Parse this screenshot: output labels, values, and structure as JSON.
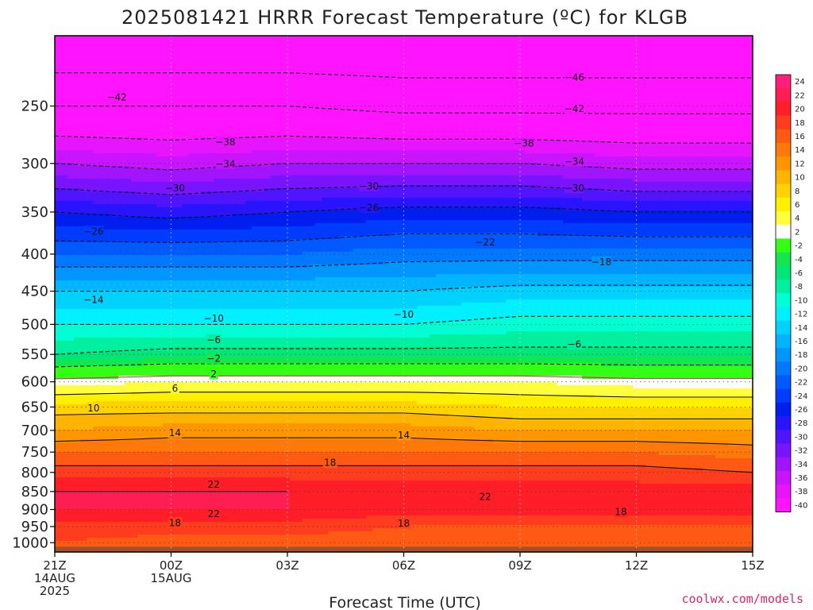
{
  "chart_data": {
    "type": "heatmap",
    "title": "2025081421 HRRR Forecast Temperature (ºC) for KLGB",
    "xlabel": "Forecast Time (UTC)",
    "ylabel": "",
    "credit": "coolwx.com/models",
    "x_ticks": [
      {
        "hour": 0,
        "lines": [
          "21Z",
          "14AUG",
          "2025"
        ]
      },
      {
        "hour": 3,
        "lines": [
          "00Z",
          "15AUG"
        ]
      },
      {
        "hour": 6,
        "lines": [
          "03Z"
        ]
      },
      {
        "hour": 9,
        "lines": [
          "06Z"
        ]
      },
      {
        "hour": 12,
        "lines": [
          "09Z"
        ]
      },
      {
        "hour": 15,
        "lines": [
          "12Z"
        ]
      },
      {
        "hour": 18,
        "lines": [
          "15Z"
        ]
      }
    ],
    "xlim": [
      0,
      18
    ],
    "y_ticks": [
      250,
      300,
      350,
      400,
      450,
      500,
      550,
      600,
      650,
      700,
      750,
      800,
      850,
      900,
      950,
      1000
    ],
    "ylim": [
      200,
      1030
    ],
    "y_scale": "log-pressure",
    "surface_pressure": 1013,
    "colorbar": {
      "labels": [
        "24",
        "22",
        "20",
        "18",
        "16",
        "14",
        "12",
        "10",
        "8",
        "6",
        "4",
        "2",
        "-2",
        "-4",
        "-6",
        "-8",
        "-10",
        "-12",
        "-14",
        "-16",
        "-18",
        "-20",
        "-22",
        "-24",
        "-26",
        "-28",
        "-30",
        "-32",
        "-34",
        "-36",
        "-38",
        "-40"
      ],
      "levels": [
        26,
        24,
        22,
        20,
        18,
        16,
        14,
        12,
        10,
        8,
        6,
        4,
        2,
        -2,
        -4,
        -6,
        -8,
        -10,
        -12,
        -14,
        -16,
        -18,
        -20,
        -22,
        -24,
        -26,
        -28,
        -30,
        -32,
        -34,
        -36,
        -38,
        -40,
        -44
      ],
      "colors": [
        "#ff1e78",
        "#ff1e52",
        "#ff1e28",
        "#ff3c1e",
        "#ff5a14",
        "#ff780a",
        "#ff9600",
        "#ffb400",
        "#ffd200",
        "#fff000",
        "#ffff3c",
        "#ffffff",
        "#32ff14",
        "#14e650",
        "#00e678",
        "#00f0a0",
        "#00ffd2",
        "#00f0ff",
        "#00d2ff",
        "#00b4ff",
        "#0096ff",
        "#0078ff",
        "#005aff",
        "#003cff",
        "#001ef0",
        "#2814ff",
        "#5014ff",
        "#7814ff",
        "#a014ff",
        "#c814ff",
        "#e614ff",
        "#ff14ff"
      ],
      "pos": [
        "#ff1e78",
        "#ff1e52",
        "#ff1e28",
        "#ff3c1e",
        "#ff5a14",
        "#ff780a",
        "#ff9600",
        "#ffb400",
        "#ffd200",
        "#fff000",
        "#ffff3c",
        "#ffffff"
      ]
    },
    "profiles": [
      {
        "hour": 0,
        "p": [
          200,
          250,
          300,
          350,
          400,
          450,
          500,
          550,
          600,
          650,
          700,
          750,
          800,
          850,
          900,
          950,
          1000
        ],
        "t": [
          -50,
          -42,
          -34,
          -26,
          -20,
          -14,
          -10,
          -6,
          3,
          9,
          12,
          16,
          19,
          22,
          22,
          19,
          18
        ]
      },
      {
        "hour": 3,
        "p": [
          200,
          250,
          300,
          350,
          400,
          450,
          500,
          550,
          600,
          650,
          700,
          750,
          800,
          850,
          900,
          950,
          1000
        ],
        "t": [
          -50,
          -42,
          -35,
          -27,
          -20,
          -14,
          -10,
          -5,
          4,
          9,
          13,
          16,
          19,
          22,
          22,
          19,
          17
        ]
      },
      {
        "hour": 6,
        "p": [
          200,
          250,
          300,
          350,
          400,
          450,
          500,
          550,
          600,
          650,
          700,
          750,
          800,
          850,
          900,
          950,
          1000
        ],
        "t": [
          -50,
          -42,
          -34,
          -26,
          -20,
          -14,
          -10,
          -5,
          4,
          9,
          13,
          16,
          19,
          22,
          22,
          19,
          17
        ]
      },
      {
        "hour": 9,
        "p": [
          200,
          250,
          300,
          350,
          400,
          450,
          500,
          550,
          600,
          650,
          700,
          750,
          800,
          850,
          900,
          950,
          1000
        ],
        "t": [
          -50,
          -43,
          -34,
          -25,
          -19,
          -14,
          -10,
          -5,
          4,
          9,
          13,
          16,
          19,
          21,
          21,
          18,
          17
        ]
      },
      {
        "hour": 12,
        "p": [
          200,
          250,
          300,
          350,
          400,
          450,
          500,
          550,
          600,
          650,
          700,
          750,
          800,
          850,
          900,
          950,
          1000
        ],
        "t": [
          -50,
          -43,
          -34,
          -25,
          -19,
          -13,
          -9,
          -5,
          4,
          8,
          12,
          16,
          19,
          21,
          21,
          18,
          16
        ]
      },
      {
        "hour": 15,
        "p": [
          200,
          250,
          300,
          350,
          400,
          450,
          500,
          550,
          600,
          650,
          700,
          750,
          800,
          850,
          900,
          950,
          1000
        ],
        "t": [
          -50,
          -43,
          -35,
          -26,
          -19,
          -13,
          -9,
          -5,
          3,
          8,
          12,
          16,
          19,
          21,
          21,
          18,
          16
        ]
      },
      {
        "hour": 18,
        "p": [
          200,
          250,
          300,
          350,
          400,
          450,
          500,
          550,
          600,
          650,
          700,
          750,
          800,
          850,
          900,
          950,
          1000
        ],
        "t": [
          -50,
          -43,
          -35,
          -26,
          -19,
          -13,
          -9,
          -5,
          3,
          8,
          12,
          15,
          18,
          21,
          21,
          18,
          16
        ]
      }
    ],
    "contour_labels": [
      {
        "hour": 1.6,
        "p": 243,
        "text": "−42"
      },
      {
        "hour": 13.4,
        "p": 228,
        "text": "−46"
      },
      {
        "hour": 13.4,
        "p": 252,
        "text": "−42"
      },
      {
        "hour": 4.4,
        "p": 280,
        "text": "−38"
      },
      {
        "hour": 12.1,
        "p": 281,
        "text": "−38"
      },
      {
        "hour": 4.4,
        "p": 300,
        "text": "−34"
      },
      {
        "hour": 13.4,
        "p": 298,
        "text": "−34"
      },
      {
        "hour": 3.1,
        "p": 324,
        "text": "−30"
      },
      {
        "hour": 8.1,
        "p": 322,
        "text": "−30"
      },
      {
        "hour": 13.4,
        "p": 324,
        "text": "−30"
      },
      {
        "hour": 1.0,
        "p": 372,
        "text": "−26"
      },
      {
        "hour": 8.1,
        "p": 345,
        "text": "−26"
      },
      {
        "hour": 11.1,
        "p": 385,
        "text": "−22"
      },
      {
        "hour": 14.1,
        "p": 410,
        "text": "−18"
      },
      {
        "hour": 1.0,
        "p": 462,
        "text": "−14"
      },
      {
        "hour": 4.1,
        "p": 490,
        "text": "−10"
      },
      {
        "hour": 9.0,
        "p": 484,
        "text": "−10"
      },
      {
        "hour": 4.1,
        "p": 525,
        "text": "−6"
      },
      {
        "hour": 13.4,
        "p": 532,
        "text": "−6"
      },
      {
        "hour": 4.1,
        "p": 557,
        "text": "−2"
      },
      {
        "hour": 4.1,
        "p": 585,
        "text": "2"
      },
      {
        "hour": 3.1,
        "p": 612,
        "text": "6"
      },
      {
        "hour": 1.0,
        "p": 652,
        "text": "10"
      },
      {
        "hour": 3.1,
        "p": 705,
        "text": "14"
      },
      {
        "hour": 9.0,
        "p": 710,
        "text": "14"
      },
      {
        "hour": 7.1,
        "p": 775,
        "text": "18"
      },
      {
        "hour": 4.1,
        "p": 830,
        "text": "22"
      },
      {
        "hour": 11.1,
        "p": 863,
        "text": "22"
      },
      {
        "hour": 4.1,
        "p": 912,
        "text": "22"
      },
      {
        "hour": 3.1,
        "p": 938,
        "text": "18"
      },
      {
        "hour": 9.0,
        "p": 939,
        "text": "18"
      },
      {
        "hour": 14.6,
        "p": 906,
        "text": "18"
      }
    ]
  }
}
